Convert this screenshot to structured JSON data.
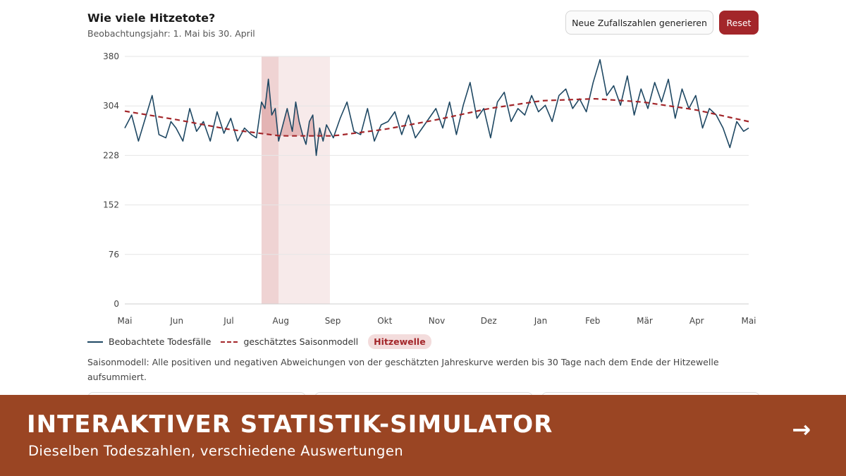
{
  "header": {
    "title": "Wie viele Hitzetote?",
    "subtitle": "Beobachtungsjahr: 1. Mai bis 30. April"
  },
  "buttons": {
    "random_label": "Neue Zufallszahlen generieren",
    "reset_label": "Reset"
  },
  "legend": {
    "observed": "Beobachtete Todesfälle",
    "model": "geschätztes Saisonmodell",
    "heatwave": "Hitzewelle"
  },
  "note": "Saisonmodell: Alle positiven und negativen Abweichungen von der geschätzten Jahreskurve werden bis 30 Tage nach dem Ende der Hitzewelle aufsummiert.",
  "banner": {
    "title": "INTERAKTIVER STATISTIK-SIMULATOR",
    "subtitle": "Dieselben Todeszahlen, verschiedene Auswertungen",
    "arrow": "→"
  },
  "colors": {
    "observed": "#1f4863",
    "model": "#a3262a",
    "heatwave_dark": "#efd3d3",
    "heatwave_light": "#f7eaea",
    "excess_fill": "#dfaaaa",
    "accent": "#a3262a",
    "banner": "#9a4523"
  },
  "chart_data": {
    "type": "line",
    "title": "Wie viele Hitzetote?",
    "subtitle": "Beobachtungsjahr: 1. Mai bis 30. April",
    "xlabel": "",
    "ylabel": "",
    "x_tick_labels": [
      "Mai",
      "Jun",
      "Jul",
      "Aug",
      "Sep",
      "Okt",
      "Nov",
      "Dez",
      "Jan",
      "Feb",
      "Mär",
      "Apr",
      "Mai"
    ],
    "y_ticks": [
      0,
      76,
      152,
      228,
      304,
      380
    ],
    "ylim": [
      0,
      380
    ],
    "x_unit": "day of observation year (0 = 1. Mai, 365 = 1. Mai)",
    "xlim": [
      0,
      365
    ],
    "grid": true,
    "legend_position": "bottom-left",
    "heatwave": {
      "start_day": 80,
      "end_day": 90
    },
    "aftermath_window": {
      "start_day": 90,
      "end_day": 120
    },
    "series": [
      {
        "name": "geschätztes Saisonmodell",
        "style": "dashed",
        "x": [
          0,
          30,
          61,
          91,
          122,
          152,
          183,
          213,
          244,
          275,
          303,
          334,
          365
        ],
        "values": [
          296,
          283,
          268,
          258,
          258,
          268,
          283,
          300,
          312,
          315,
          310,
          298,
          280
        ]
      },
      {
        "name": "Beobachtete Todesfälle",
        "style": "solid",
        "x": [
          0,
          4,
          8,
          12,
          16,
          20,
          24,
          27,
          30,
          34,
          38,
          42,
          46,
          50,
          54,
          58,
          62,
          66,
          70,
          74,
          77,
          80,
          82,
          84,
          86,
          88,
          90,
          92,
          95,
          98,
          100,
          102,
          104,
          106,
          108,
          110,
          112,
          114,
          116,
          118,
          122,
          126,
          130,
          134,
          138,
          142,
          146,
          150,
          154,
          158,
          162,
          166,
          170,
          174,
          178,
          182,
          186,
          190,
          194,
          198,
          202,
          206,
          210,
          214,
          218,
          222,
          226,
          230,
          234,
          238,
          242,
          246,
          250,
          254,
          258,
          262,
          266,
          270,
          274,
          278,
          282,
          286,
          290,
          294,
          298,
          302,
          306,
          310,
          314,
          318,
          322,
          326,
          330,
          334,
          338,
          342,
          346,
          350,
          354,
          358,
          362,
          365
        ],
        "values": [
          270,
          290,
          250,
          285,
          320,
          260,
          255,
          280,
          270,
          250,
          300,
          265,
          280,
          250,
          295,
          262,
          285,
          250,
          270,
          260,
          255,
          310,
          300,
          345,
          290,
          300,
          250,
          270,
          300,
          265,
          310,
          280,
          260,
          245,
          280,
          290,
          228,
          270,
          250,
          275,
          255,
          285,
          310,
          265,
          260,
          300,
          250,
          275,
          280,
          295,
          260,
          290,
          255,
          270,
          285,
          300,
          270,
          310,
          260,
          305,
          340,
          285,
          300,
          255,
          310,
          325,
          280,
          300,
          290,
          320,
          295,
          305,
          280,
          320,
          330,
          300,
          315,
          295,
          340,
          375,
          320,
          335,
          305,
          350,
          290,
          330,
          300,
          340,
          310,
          345,
          285,
          330,
          300,
          320,
          270,
          300,
          290,
          270,
          240,
          280,
          265,
          270
        ]
      }
    ]
  }
}
